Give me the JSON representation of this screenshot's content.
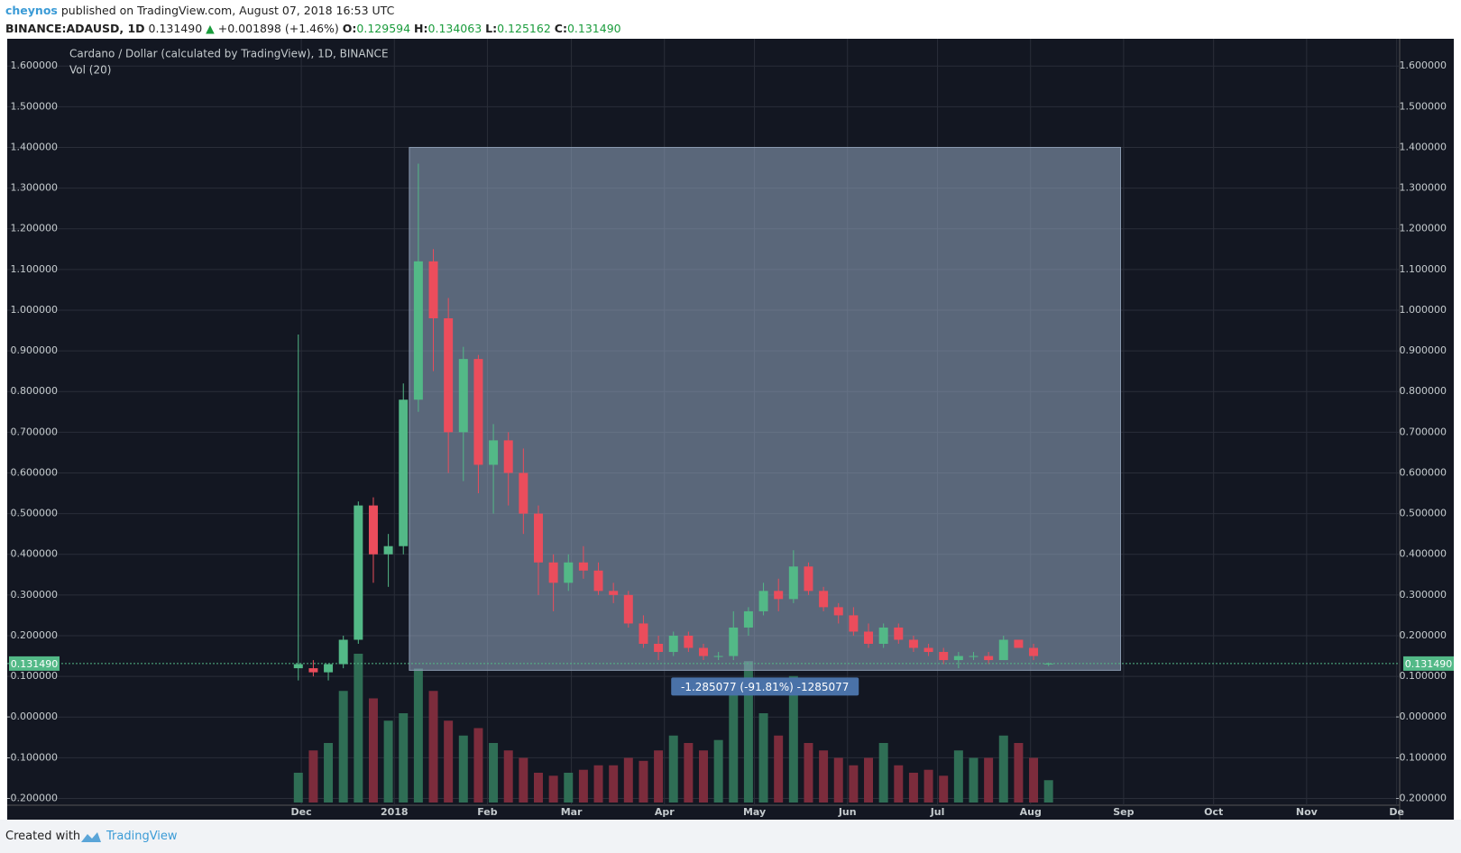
{
  "header": {
    "author": "cheynos",
    "published": "published on TradingView.com, August 07, 2018 16:53 UTC",
    "symbol": "BINANCE:ADAUSD, 1D",
    "last": "0.131490",
    "change_arrow": "▲",
    "change": "+0.001898 (+1.46%)",
    "o_label": "O:",
    "o": "0.129594",
    "h_label": "H:",
    "h": "0.134063",
    "l_label": "L:",
    "l": "0.125162",
    "c_label": "C:",
    "c": "0.131490"
  },
  "footer": {
    "created": "Created with",
    "brand": "TradingView"
  },
  "chart_data": {
    "type": "candlestick",
    "legend": "Cardano / Dollar (calculated by TradingView), 1D, BINANCE",
    "volume_legend": "Vol (20)",
    "up_color": "#53b987",
    "down_color": "#eb4d5c",
    "volume_up_color": "#2f6e55",
    "volume_down_color": "#7c2c3c",
    "xlim": [
      -98,
      366
    ],
    "xticks": [
      {
        "value": 0,
        "label": "Dec"
      },
      {
        "value": 31,
        "label": "2018"
      },
      {
        "value": 62,
        "label": "Feb"
      },
      {
        "value": 90,
        "label": "Mar"
      },
      {
        "value": 121,
        "label": "Apr"
      },
      {
        "value": 151,
        "label": "May"
      },
      {
        "value": 182,
        "label": "Jun"
      },
      {
        "value": 212,
        "label": "Jul"
      },
      {
        "value": 243,
        "label": "Aug"
      },
      {
        "value": 274,
        "label": "Sep"
      },
      {
        "value": 304,
        "label": "Oct"
      },
      {
        "value": 335,
        "label": "Nov"
      },
      {
        "value": 365,
        "label": "De"
      }
    ],
    "ylim": [
      -0.21,
      1.667
    ],
    "yticks": [
      {
        "value": 1.6,
        "label": "1.600000"
      },
      {
        "value": 1.5,
        "label": "1.500000"
      },
      {
        "value": 1.4,
        "label": "1.400000"
      },
      {
        "value": 1.3,
        "label": "1.300000"
      },
      {
        "value": 1.2,
        "label": "1.200000"
      },
      {
        "value": 1.1,
        "label": "1.100000"
      },
      {
        "value": 1.0,
        "label": "1.000000"
      },
      {
        "value": 0.9,
        "label": "0.900000"
      },
      {
        "value": 0.8,
        "label": "0.800000"
      },
      {
        "value": 0.7,
        "label": "0.700000"
      },
      {
        "value": 0.6,
        "label": "0.600000"
      },
      {
        "value": 0.5,
        "label": "0.500000"
      },
      {
        "value": 0.4,
        "label": "0.400000"
      },
      {
        "value": 0.3,
        "label": "0.300000"
      },
      {
        "value": 0.2,
        "label": "0.200000"
      },
      {
        "value": 0.1,
        "label": "0.100000"
      },
      {
        "value": 0,
        "label": "-0.000000"
      },
      {
        "value": -0.1,
        "label": "-0.100000"
      },
      {
        "value": -0.2,
        "label": "-0.200000"
      }
    ],
    "grid": true,
    "x": [
      -1,
      4,
      9,
      14,
      19,
      24,
      29,
      34,
      39,
      44,
      49,
      54,
      59,
      64,
      69,
      74,
      79,
      84,
      89,
      94,
      99,
      104,
      109,
      114,
      119,
      124,
      129,
      134,
      139,
      144,
      149,
      154,
      159,
      164,
      169,
      174,
      179,
      184,
      189,
      194,
      199,
      204,
      209,
      214,
      219,
      224,
      229,
      234,
      239,
      244,
      249
    ],
    "open": [
      0.12,
      0.12,
      0.11,
      0.13,
      0.19,
      0.52,
      0.4,
      0.42,
      0.78,
      1.12,
      0.98,
      0.7,
      0.88,
      0.62,
      0.68,
      0.6,
      0.5,
      0.38,
      0.33,
      0.38,
      0.36,
      0.31,
      0.3,
      0.23,
      0.18,
      0.16,
      0.2,
      0.17,
      0.15,
      0.15,
      0.22,
      0.26,
      0.31,
      0.29,
      0.37,
      0.31,
      0.27,
      0.25,
      0.21,
      0.18,
      0.22,
      0.19,
      0.17,
      0.16,
      0.14,
      0.15,
      0.15,
      0.14,
      0.19,
      0.17,
      0.129594
    ],
    "high": [
      0.94,
      0.14,
      0.13,
      0.2,
      0.53,
      0.54,
      0.45,
      0.82,
      1.36,
      1.15,
      1.03,
      0.91,
      0.89,
      0.72,
      0.7,
      0.66,
      0.52,
      0.4,
      0.4,
      0.42,
      0.38,
      0.33,
      0.31,
      0.25,
      0.2,
      0.21,
      0.21,
      0.18,
      0.16,
      0.26,
      0.27,
      0.33,
      0.34,
      0.41,
      0.38,
      0.32,
      0.28,
      0.27,
      0.23,
      0.23,
      0.23,
      0.2,
      0.18,
      0.17,
      0.16,
      0.16,
      0.16,
      0.2,
      0.19,
      0.18,
      0.134063
    ],
    "low": [
      0.09,
      0.1,
      0.09,
      0.12,
      0.18,
      0.33,
      0.32,
      0.4,
      0.75,
      0.85,
      0.6,
      0.58,
      0.55,
      0.5,
      0.52,
      0.45,
      0.3,
      0.26,
      0.31,
      0.34,
      0.3,
      0.28,
      0.22,
      0.17,
      0.14,
      0.15,
      0.16,
      0.14,
      0.14,
      0.14,
      0.2,
      0.25,
      0.26,
      0.28,
      0.3,
      0.26,
      0.23,
      0.2,
      0.17,
      0.17,
      0.18,
      0.16,
      0.15,
      0.13,
      0.12,
      0.14,
      0.13,
      0.14,
      0.17,
      0.14,
      0.125162
    ],
    "close": [
      0.13,
      0.11,
      0.13,
      0.19,
      0.52,
      0.4,
      0.42,
      0.78,
      1.12,
      0.98,
      0.7,
      0.88,
      0.62,
      0.68,
      0.6,
      0.5,
      0.38,
      0.33,
      0.38,
      0.36,
      0.31,
      0.3,
      0.23,
      0.18,
      0.16,
      0.2,
      0.17,
      0.15,
      0.15,
      0.22,
      0.26,
      0.31,
      0.29,
      0.37,
      0.31,
      0.27,
      0.25,
      0.21,
      0.18,
      0.22,
      0.19,
      0.17,
      0.16,
      0.14,
      0.15,
      0.15,
      0.14,
      0.19,
      0.17,
      0.15,
      0.13149
    ],
    "volume": [
      20,
      35,
      40,
      75,
      100,
      70,
      55,
      60,
      90,
      75,
      55,
      45,
      50,
      40,
      35,
      30,
      20,
      18,
      20,
      22,
      25,
      25,
      30,
      28,
      35,
      45,
      40,
      35,
      42,
      80,
      95,
      60,
      45,
      85,
      40,
      35,
      30,
      25,
      30,
      40,
      25,
      20,
      22,
      18,
      35,
      30,
      30,
      45,
      40,
      30,
      15
    ],
    "price_line": {
      "value": 0.13149,
      "label": "0.131490"
    },
    "measure": {
      "start": 36,
      "end": 273,
      "top": 1.4,
      "bottom": 0.114923,
      "label": "-1.285077 (-91.81%) -1285077"
    }
  }
}
